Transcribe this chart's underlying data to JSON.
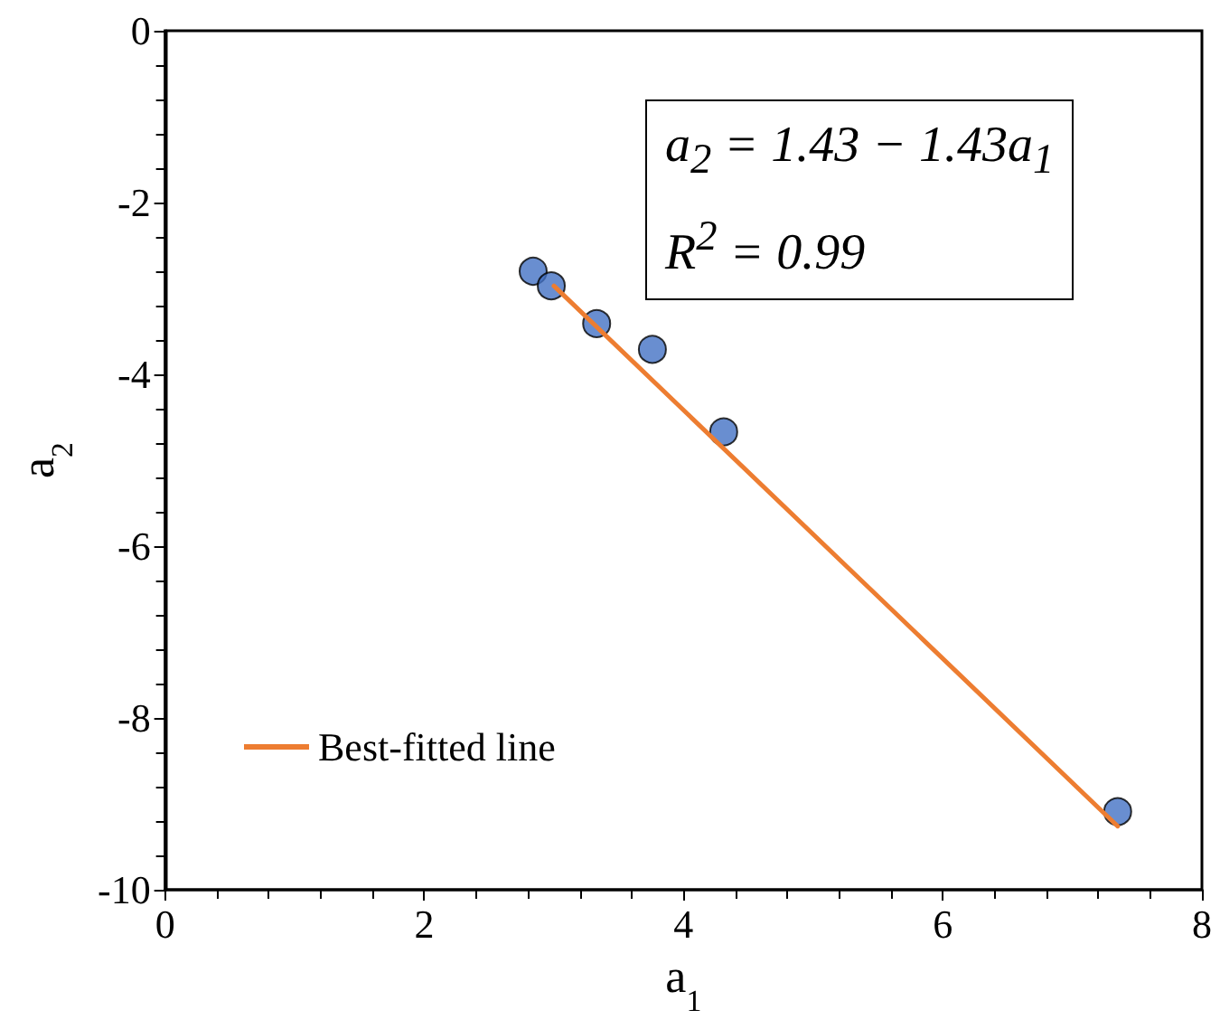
{
  "chart_data": {
    "type": "scatter",
    "xlabel": "a$_{1}$",
    "ylabel": "a$_{2}$",
    "xlim": [
      0,
      8
    ],
    "xticks": [
      0,
      2,
      4,
      6,
      8
    ],
    "ylim": [
      -10,
      0
    ],
    "yticks": [
      -10,
      -8,
      -6,
      -4,
      -2,
      0
    ],
    "grid": false,
    "legend": "bottom left",
    "marker": "circle",
    "annotations": [
      "a$_{2}$ = 1.43 − 1.43a$_{1}$",
      "R$^{2}$ = 0.99"
    ],
    "series": [
      {
        "type": "scatter",
        "color": "#4472c4",
        "x": [
          2.84,
          2.98,
          3.33,
          3.76,
          4.31,
          7.35
        ],
        "values": [
          -2.8,
          -2.97,
          -3.41,
          -3.71,
          -4.67,
          -9.09
        ]
      },
      {
        "type": "line",
        "name": "Best-fitted line",
        "color": "#ed7d31",
        "marker": "none",
        "line_style": "solid",
        "x": [
          3.0,
          7.35
        ],
        "values": [
          -2.97,
          -9.26
        ]
      }
    ]
  }
}
